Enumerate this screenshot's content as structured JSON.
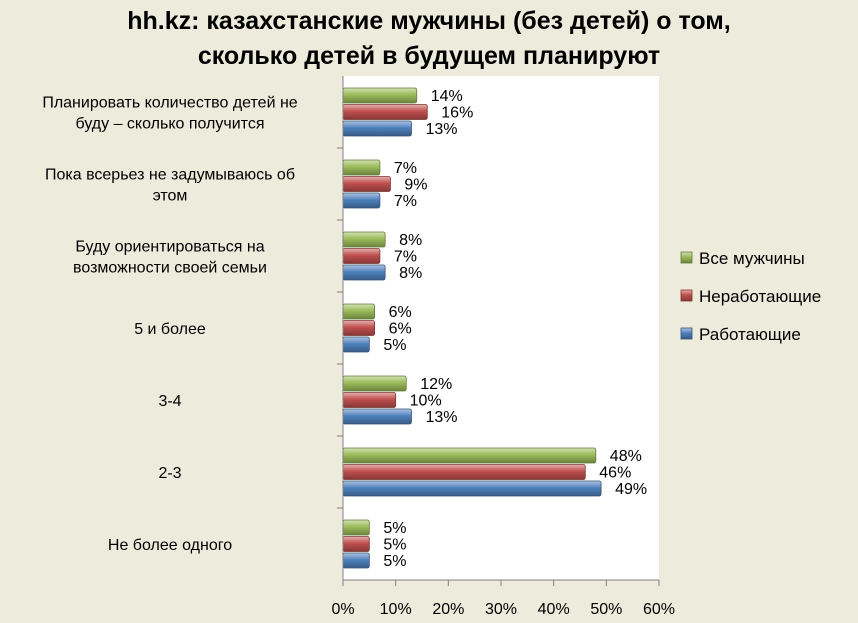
{
  "chart_data": {
    "type": "bar",
    "orientation": "horizontal",
    "title_lines": [
      "hh.kz: казахстанские  мужчины (без детей) о том,",
      "сколько детей в будущем планируют"
    ],
    "categories": [
      [
        "Планировать количество детей не",
        "буду – сколько получится"
      ],
      [
        "Пока всерьез не задумываюсь об",
        "этом"
      ],
      [
        "Буду ориентироваться  на",
        "возможности своей семьи"
      ],
      [
        "5 и более"
      ],
      [
        "3-4"
      ],
      [
        "2-3"
      ],
      [
        "Не более одного"
      ]
    ],
    "series": [
      {
        "name": "Все мужчины",
        "color": "#9bbb59",
        "values": [
          14,
          7,
          8,
          6,
          12,
          48,
          5
        ]
      },
      {
        "name": "Неработающие",
        "color": "#c0504d",
        "values": [
          16,
          9,
          7,
          6,
          10,
          46,
          5
        ]
      },
      {
        "name": "Работающие",
        "color": "#4f81bd",
        "values": [
          13,
          7,
          8,
          5,
          13,
          49,
          5
        ]
      }
    ],
    "value_suffix": "%",
    "xlim": [
      0,
      60
    ],
    "xticks": [
      0,
      10,
      20,
      30,
      40,
      50,
      60
    ],
    "xtick_labels": [
      "0%",
      "10%",
      "20%",
      "30%",
      "40%",
      "50%",
      "60%"
    ],
    "legend_position": "right",
    "grid": false
  }
}
